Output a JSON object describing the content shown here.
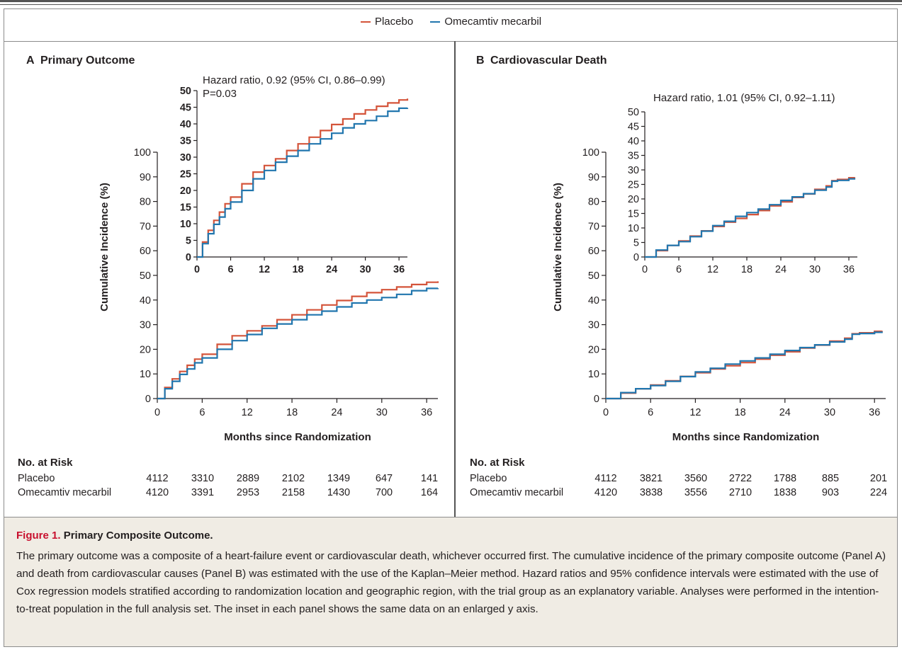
{
  "colors": {
    "placebo": "#d4543a",
    "omecamtiv": "#2176ae",
    "caption_accent": "#c8102e"
  },
  "legend": {
    "placebo": "Placebo",
    "omecamtiv": "Omecamtiv mecarbil"
  },
  "chart_data": [
    {
      "type": "line",
      "panel_label": "A",
      "title": "Primary Outcome",
      "xlabel": "Months since Randomization",
      "ylabel": "Cumulative Incidence (%)",
      "xlim": [
        0,
        37.5
      ],
      "ylim": [
        0,
        100
      ],
      "xticks": [
        0,
        6,
        12,
        18,
        24,
        30,
        36
      ],
      "yticks": [
        0,
        10,
        20,
        30,
        40,
        50,
        60,
        70,
        80,
        90,
        100
      ],
      "grid": false,
      "series": [
        {
          "name": "Placebo",
          "color": "#d4543a",
          "x": [
            0,
            1,
            2,
            3,
            4,
            5,
            6,
            8,
            10,
            12,
            14,
            16,
            18,
            20,
            22,
            24,
            26,
            28,
            30,
            32,
            34,
            36,
            37.5
          ],
          "y": [
            0,
            4.5,
            8,
            11,
            13.5,
            16,
            18,
            22,
            25.5,
            27.5,
            29.5,
            32,
            34,
            36,
            38,
            39.8,
            41.5,
            43,
            44.2,
            45.3,
            46.3,
            47.2,
            47.6
          ]
        },
        {
          "name": "Omecamtiv mecarbil",
          "color": "#2176ae",
          "x": [
            0,
            1,
            2,
            3,
            4,
            5,
            6,
            8,
            10,
            12,
            14,
            16,
            18,
            20,
            22,
            24,
            26,
            28,
            30,
            32,
            34,
            36,
            37.5
          ],
          "y": [
            0,
            4,
            7,
            9.8,
            12,
            14.5,
            16.5,
            20,
            23.5,
            26,
            28.5,
            30.3,
            32,
            34,
            35.5,
            37.2,
            38.8,
            40,
            41,
            42.3,
            43.8,
            44.7,
            44.8
          ]
        }
      ],
      "inset": {
        "annotation": [
          "Hazard ratio, 0.92 (95% CI, 0.86–0.99)",
          "P=0.03"
        ],
        "xlim": [
          0,
          37.5
        ],
        "ylim": [
          0,
          50
        ],
        "xticks": [
          0,
          6,
          12,
          18,
          24,
          30,
          36
        ],
        "yticks": [
          0,
          5,
          10,
          15,
          20,
          25,
          30,
          35,
          40,
          45,
          50
        ]
      },
      "risk_table": {
        "heading": "No. at Risk",
        "rows": [
          {
            "label": "Placebo",
            "values": [
              "4112",
              "3310",
              "2889",
              "2102",
              "1349",
              "647",
              "141"
            ]
          },
          {
            "label": "Omecamtiv mecarbil",
            "values": [
              "4120",
              "3391",
              "2953",
              "2158",
              "1430",
              "700",
              "164"
            ]
          }
        ]
      }
    },
    {
      "type": "line",
      "panel_label": "B",
      "title": "Cardiovascular Death",
      "xlabel": "Months since Randomization",
      "ylabel": "Cumulative Incidence (%)",
      "xlim": [
        0,
        37.5
      ],
      "ylim": [
        0,
        100
      ],
      "xticks": [
        0,
        6,
        12,
        18,
        24,
        30,
        36
      ],
      "yticks": [
        0,
        10,
        20,
        30,
        40,
        50,
        60,
        70,
        80,
        90,
        100
      ],
      "grid": false,
      "series": [
        {
          "name": "Placebo",
          "color": "#d4543a",
          "x": [
            0,
            2,
            4,
            6,
            8,
            10,
            12,
            14,
            16,
            18,
            20,
            22,
            24,
            26,
            28,
            30,
            32,
            33,
            34,
            36,
            37
          ],
          "y": [
            0,
            2.2,
            4,
            5.5,
            7.2,
            9,
            10.5,
            12,
            13.3,
            14.6,
            16,
            17.6,
            19,
            20.5,
            21.7,
            23.3,
            24.5,
            26.3,
            26.7,
            27.3,
            27.5
          ]
        },
        {
          "name": "Omecamtiv mecarbil",
          "color": "#2176ae",
          "x": [
            0,
            2,
            4,
            6,
            8,
            10,
            12,
            14,
            16,
            18,
            20,
            22,
            24,
            26,
            28,
            30,
            32,
            33,
            34,
            36,
            37
          ],
          "y": [
            0,
            2.4,
            4,
            5.3,
            7,
            8.9,
            10.8,
            12.3,
            14,
            15.3,
            16.5,
            18,
            19.5,
            20.7,
            21.8,
            23,
            24.1,
            26.1,
            26.4,
            26.9,
            27.2
          ]
        }
      ],
      "inset": {
        "annotation": [
          "Hazard ratio, 1.01 (95% CI, 0.92–1.11)"
        ],
        "xlim": [
          0,
          37.5
        ],
        "ylim": [
          0,
          50
        ],
        "xticks": [
          0,
          6,
          12,
          18,
          24,
          30,
          36
        ],
        "yticks": [
          0,
          5,
          10,
          15,
          20,
          25,
          30,
          35,
          40,
          45,
          50
        ]
      },
      "risk_table": {
        "heading": "No. at Risk",
        "rows": [
          {
            "label": "Placebo",
            "values": [
              "4112",
              "3821",
              "3560",
              "2722",
              "1788",
              "885",
              "201"
            ]
          },
          {
            "label": "Omecamtiv mecarbil",
            "values": [
              "4120",
              "3838",
              "3556",
              "2710",
              "1838",
              "903",
              "224"
            ]
          }
        ]
      }
    }
  ],
  "caption": {
    "figure_label": "Figure 1.",
    "title": "Primary Composite Outcome.",
    "body": "The primary outcome was a composite of a heart-failure event or cardiovascular death, whichever occurred first. The cumulative incidence of the primary composite outcome (Panel A) and death from cardiovascular causes (Panel B) was estimated with the use of the Kaplan–Meier method. Hazard ratios and 95% confidence intervals were estimated with the use of Cox regression models stratified according to randomization location and geographic region, with the trial group as an explanatory variable. Analyses were performed in the intention-to-treat population in the full analysis set. The inset in each panel shows the same data on an enlarged y axis."
  }
}
